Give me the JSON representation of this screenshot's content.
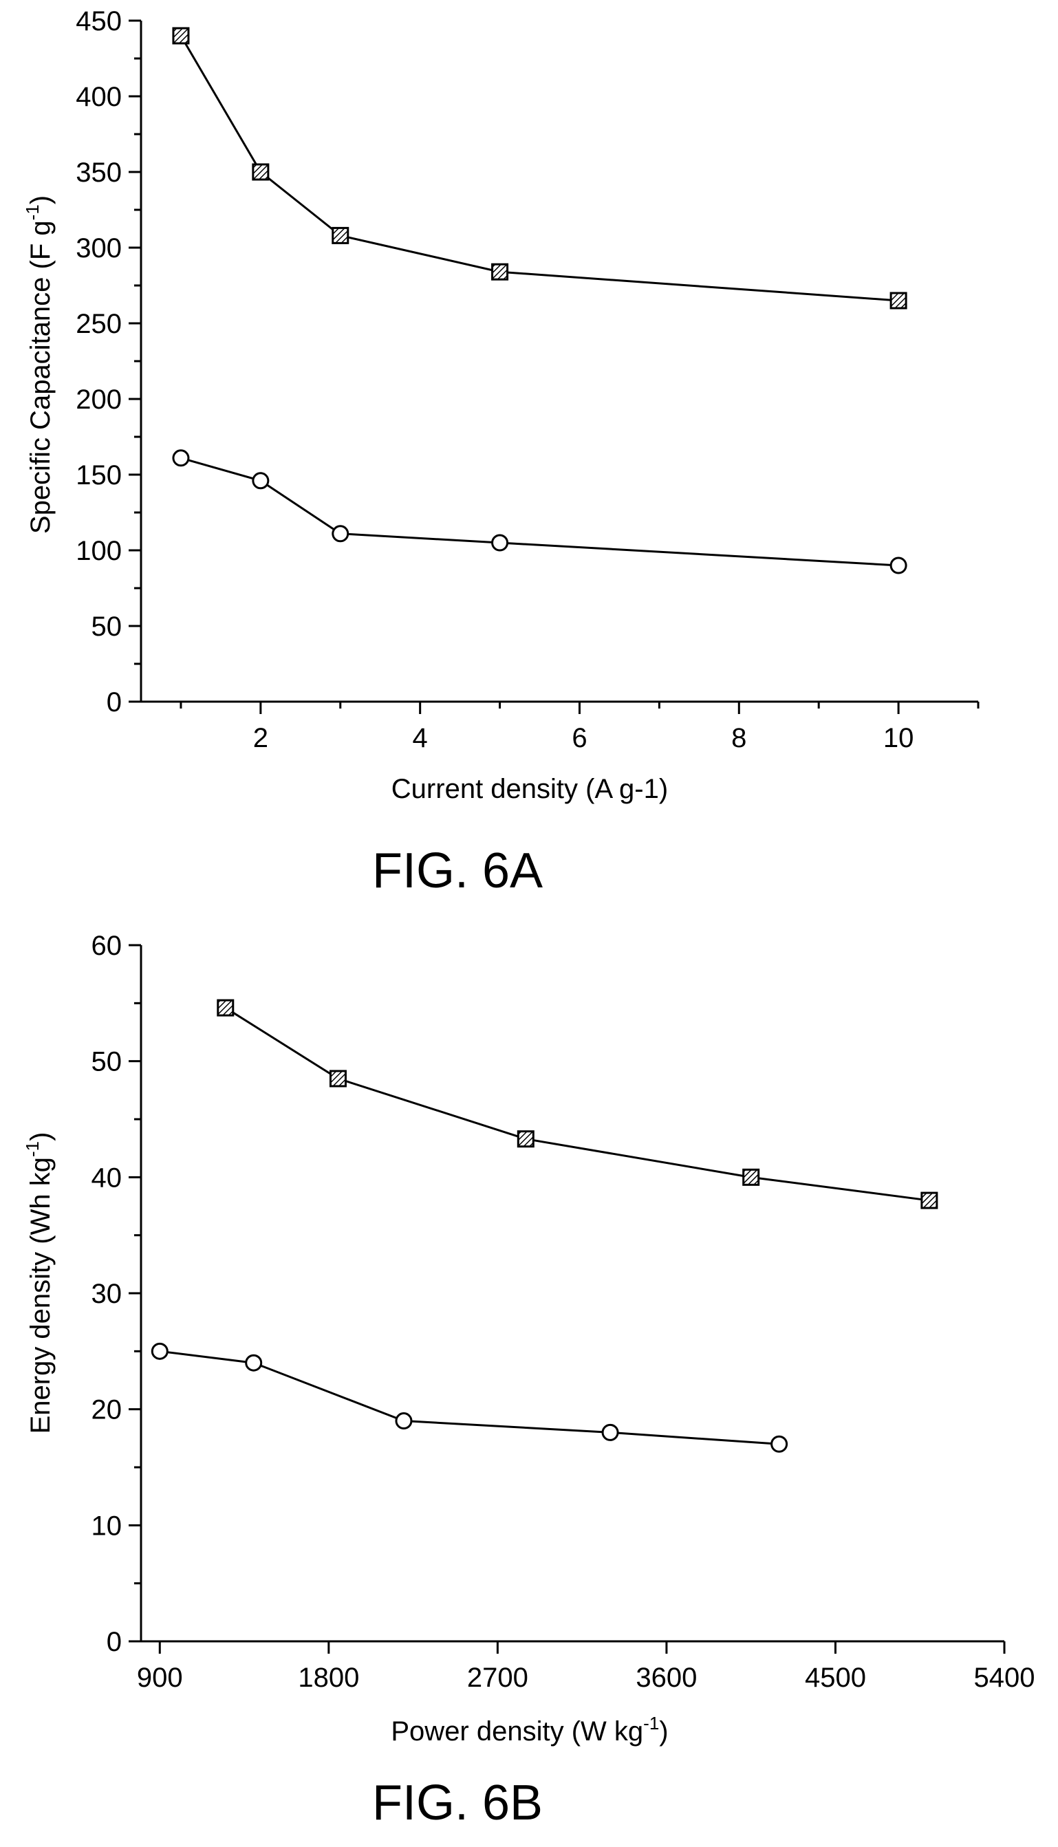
{
  "chart_data": [
    {
      "type": "line",
      "caption": "FIG. 6A",
      "xlabel": "Current density (A g-1)",
      "ylabel": "Specific Capacitance (F g",
      "ylabel_sup": "-1",
      "ylabel_close": ")",
      "xlim": [
        0.5,
        11
      ],
      "ylim": [
        0,
        450
      ],
      "xticks": [
        2,
        4,
        6,
        8,
        10
      ],
      "yticks": [
        0,
        50,
        100,
        150,
        200,
        250,
        300,
        350,
        400,
        450
      ],
      "grid": false,
      "series": [
        {
          "marker": "hatched-square",
          "x": [
            1,
            2,
            3,
            5,
            10
          ],
          "values": [
            440,
            350,
            308,
            284,
            265
          ]
        },
        {
          "marker": "open-circle",
          "x": [
            1,
            2,
            3,
            5,
            10
          ],
          "values": [
            161,
            146,
            111,
            105,
            90
          ]
        }
      ]
    },
    {
      "type": "line",
      "caption": "FIG. 6B",
      "xlabel": "Power density (W kg",
      "xlabel_sup": "-1",
      "xlabel_close": ")",
      "ylabel": "Energy density (Wh kg",
      "ylabel_sup": "-1",
      "ylabel_close": ")",
      "xlim": [
        800,
        5400
      ],
      "ylim": [
        0,
        60
      ],
      "xticks": [
        900,
        1800,
        2700,
        3600,
        4500,
        5400
      ],
      "yticks": [
        0,
        10,
        20,
        30,
        40,
        50,
        60
      ],
      "grid": false,
      "series": [
        {
          "marker": "hatched-square",
          "x": [
            1250,
            1850,
            2850,
            4050,
            5000
          ],
          "values": [
            54.6,
            48.5,
            43.3,
            40.0,
            38.0
          ]
        },
        {
          "marker": "open-circle",
          "x": [
            900,
            1400,
            2200,
            3300,
            4200
          ],
          "values": [
            25.0,
            24.0,
            19.0,
            18.0,
            17.0
          ]
        }
      ]
    }
  ]
}
